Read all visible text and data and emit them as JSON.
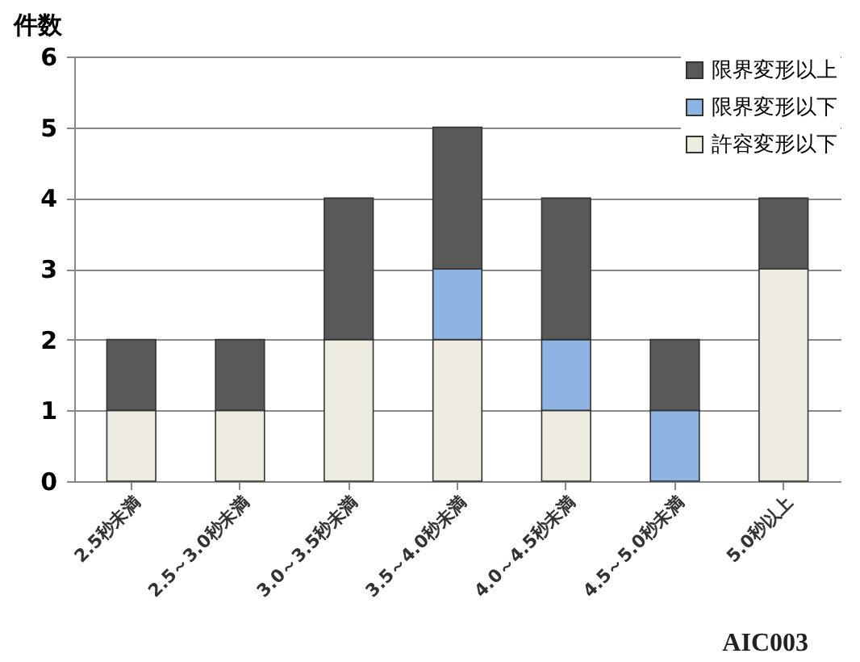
{
  "chart_data": {
    "type": "bar",
    "stacked": true,
    "ylabel": "件数",
    "categories": [
      "2.5秒未満",
      "2.5～3.0秒未満",
      "3.0～3.5秒未満",
      "3.5～4.0秒未満",
      "4.0～4.5秒未満",
      "4.5～5.0秒未満",
      "5.0秒以上"
    ],
    "series": [
      {
        "name": "許容変形以下",
        "color": "#eeece1",
        "values": [
          1,
          1,
          2,
          2,
          1,
          0,
          3
        ]
      },
      {
        "name": "限界変形以下",
        "color": "#8db4e2",
        "values": [
          0,
          0,
          0,
          1,
          1,
          1,
          0
        ]
      },
      {
        "name": "限界変形以上",
        "color": "#595959",
        "values": [
          1,
          1,
          2,
          2,
          2,
          1,
          1
        ]
      }
    ],
    "ylim": [
      0,
      6
    ],
    "yticks": [
      0,
      1,
      2,
      3,
      4,
      5,
      6
    ],
    "grid": "y",
    "legend": "top right",
    "annotations": [
      "AIC003"
    ]
  }
}
